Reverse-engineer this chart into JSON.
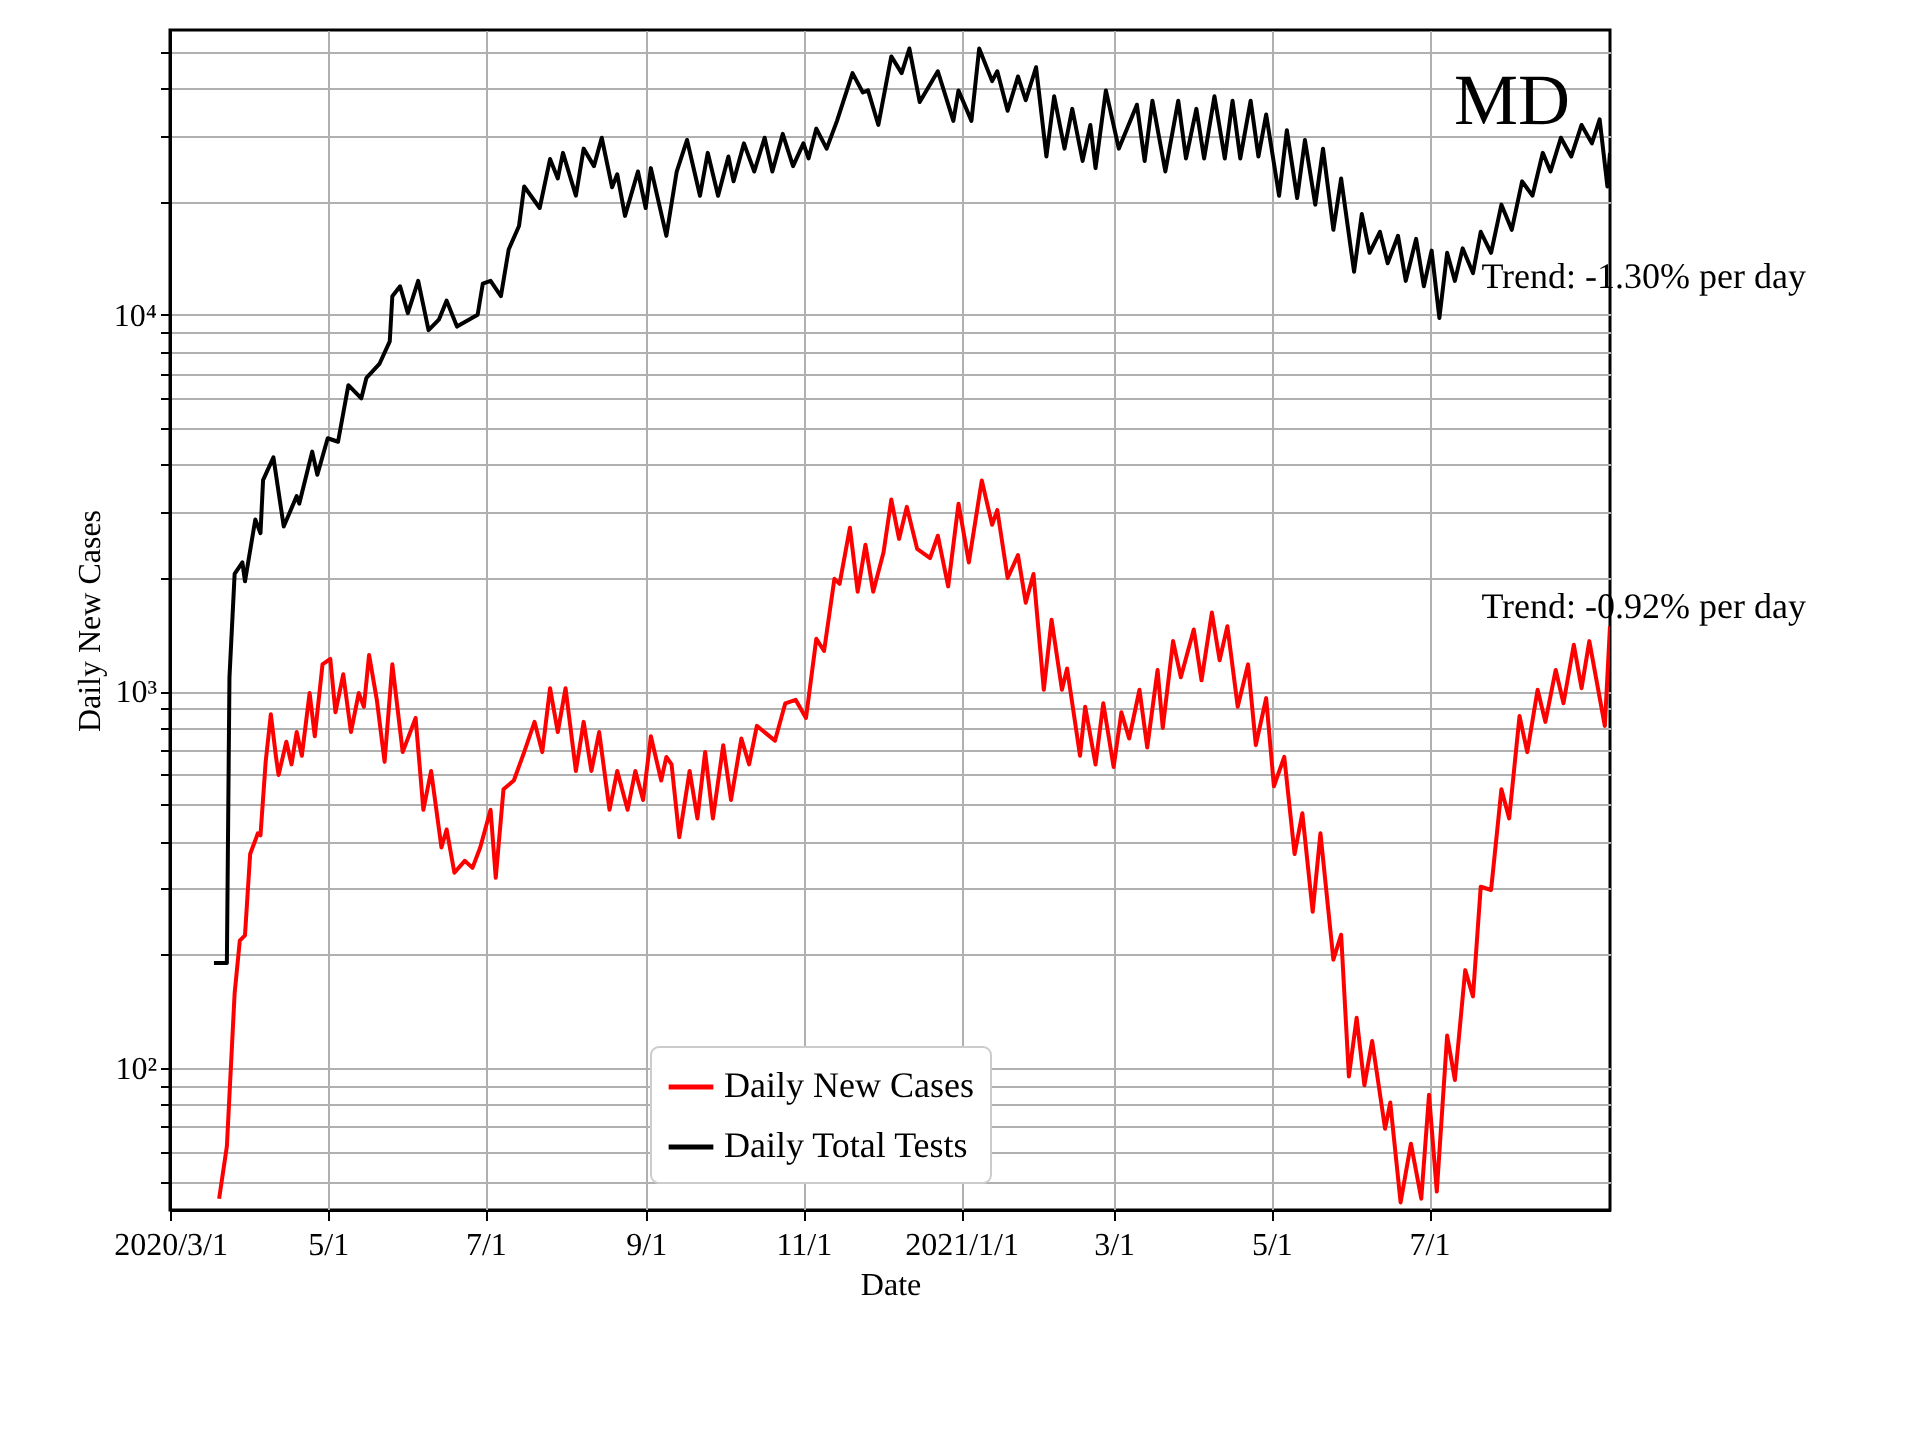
{
  "chart_data": {
    "type": "line",
    "xlabel": "Date",
    "ylabel": "Daily New Cases",
    "annotations": [
      "MD",
      "Trend: -1.30% per day",
      "Trend: -0.92% per day"
    ],
    "xlim": [
      "2020-03-01",
      "2021-09-09"
    ],
    "xticks": [
      {
        "value": "2020-03-01",
        "label": "2020/3/1"
      },
      {
        "value": "2020-05-01",
        "label": "5/1"
      },
      {
        "value": "2020-07-01",
        "label": "7/1"
      },
      {
        "value": "2020-09-01",
        "label": "9/1"
      },
      {
        "value": "2020-11-01",
        "label": "11/1"
      },
      {
        "value": "2021-01-01",
        "label": "2021/1/1"
      },
      {
        "value": "2021-03-01",
        "label": "3/1"
      },
      {
        "value": "2021-05-01",
        "label": "5/1"
      },
      {
        "value": "2021-07-01",
        "label": "7/1"
      }
    ],
    "ylim": [
      42,
      57000
    ],
    "yticks": [
      {
        "value": 50,
        "label": null
      },
      {
        "value": 60,
        "label": null
      },
      {
        "value": 70,
        "label": null
      },
      {
        "value": 80,
        "label": null
      },
      {
        "value": 90,
        "label": null
      },
      {
        "value": 100,
        "label": "10²"
      },
      {
        "value": 200,
        "label": null
      },
      {
        "value": 300,
        "label": null
      },
      {
        "value": 400,
        "label": null
      },
      {
        "value": 500,
        "label": null
      },
      {
        "value": 600,
        "label": null
      },
      {
        "value": 700,
        "label": null
      },
      {
        "value": 800,
        "label": null
      },
      {
        "value": 900,
        "label": null
      },
      {
        "value": 1000,
        "label": "10³"
      },
      {
        "value": 2000,
        "label": null
      },
      {
        "value": 3000,
        "label": null
      },
      {
        "value": 4000,
        "label": null
      },
      {
        "value": 5000,
        "label": null
      },
      {
        "value": 6000,
        "label": null
      },
      {
        "value": 7000,
        "label": null
      },
      {
        "value": 8000,
        "label": null
      },
      {
        "value": 9000,
        "label": null
      },
      {
        "value": 10000,
        "label": "10⁴"
      },
      {
        "value": 20000,
        "label": null
      },
      {
        "value": 30000,
        "label": null
      },
      {
        "value": 40000,
        "label": null
      },
      {
        "value": 50000,
        "label": null
      }
    ],
    "log": true,
    "grid": true,
    "legend": "bottom",
    "marker": "none",
    "line_style": "solid",
    "series": [
      {
        "name": "Daily New Cases",
        "color": "#ff0000",
        "x": [
          "2020-03-20",
          "2020-03-23",
          "2020-03-26",
          "2020-03-28",
          "2020-03-30",
          "2020-04-01",
          "2020-04-04",
          "2020-04-05",
          "2020-04-07",
          "2020-04-09",
          "2020-04-11",
          "2020-04-12",
          "2020-04-15",
          "2020-04-17",
          "2020-04-19",
          "2020-04-21",
          "2020-04-24",
          "2020-04-26",
          "2020-04-29",
          "2020-05-02",
          "2020-05-04",
          "2020-05-07",
          "2020-05-10",
          "2020-05-13",
          "2020-05-15",
          "2020-05-17",
          "2020-05-20",
          "2020-05-23",
          "2020-05-26",
          "2020-05-30",
          "2020-06-04",
          "2020-06-07",
          "2020-06-10",
          "2020-06-14",
          "2020-06-16",
          "2020-06-19",
          "2020-06-23",
          "2020-06-26",
          "2020-06-29",
          "2020-07-03",
          "2020-07-05",
          "2020-07-08",
          "2020-07-12",
          "2020-07-16",
          "2020-07-20",
          "2020-07-23",
          "2020-07-26",
          "2020-07-29",
          "2020-08-01",
          "2020-08-05",
          "2020-08-08",
          "2020-08-11",
          "2020-08-14",
          "2020-08-18",
          "2020-08-21",
          "2020-08-25",
          "2020-08-28",
          "2020-08-31",
          "2020-09-03",
          "2020-09-07",
          "2020-09-09",
          "2020-09-11",
          "2020-09-14",
          "2020-09-18",
          "2020-09-21",
          "2020-09-24",
          "2020-09-27",
          "2020-10-01",
          "2020-10-04",
          "2020-10-08",
          "2020-10-11",
          "2020-10-14",
          "2020-10-21",
          "2020-10-25",
          "2020-10-29",
          "2020-11-02",
          "2020-11-06",
          "2020-11-09",
          "2020-11-13",
          "2020-11-15",
          "2020-11-19",
          "2020-11-22",
          "2020-11-25",
          "2020-11-28",
          "2020-12-02",
          "2020-12-05",
          "2020-12-08",
          "2020-12-11",
          "2020-12-15",
          "2020-12-20",
          "2020-12-23",
          "2020-12-27",
          "2020-12-31",
          "2021-01-04",
          "2021-01-09",
          "2021-01-13",
          "2021-01-15",
          "2021-01-19",
          "2021-01-23",
          "2021-01-26",
          "2021-01-29",
          "2021-02-02",
          "2021-02-05",
          "2021-02-09",
          "2021-02-11",
          "2021-02-16",
          "2021-02-18",
          "2021-02-22",
          "2021-02-25",
          "2021-03-01",
          "2021-03-04",
          "2021-03-07",
          "2021-03-11",
          "2021-03-14",
          "2021-03-18",
          "2021-03-20",
          "2021-03-24",
          "2021-03-27",
          "2021-04-01",
          "2021-04-04",
          "2021-04-08",
          "2021-04-11",
          "2021-04-14",
          "2021-04-18",
          "2021-04-22",
          "2021-04-25",
          "2021-04-29",
          "2021-05-02",
          "2021-05-06",
          "2021-05-10",
          "2021-05-13",
          "2021-05-17",
          "2021-05-20",
          "2021-05-25",
          "2021-05-28",
          "2021-05-31",
          "2021-06-03",
          "2021-06-06",
          "2021-06-09",
          "2021-06-14",
          "2021-06-16",
          "2021-06-20",
          "2021-06-24",
          "2021-06-28",
          "2021-07-01",
          "2021-07-04",
          "2021-07-08",
          "2021-07-11",
          "2021-07-15",
          "2021-07-18",
          "2021-07-21",
          "2021-07-25",
          "2021-07-29",
          "2021-08-01",
          "2021-08-05",
          "2021-08-08",
          "2021-08-12",
          "2021-08-15",
          "2021-08-19",
          "2021-08-22",
          "2021-08-26",
          "2021-08-29",
          "2021-09-01",
          "2021-09-07",
          "2021-09-09"
        ],
        "values": [
          45,
          62,
          158,
          218,
          225,
          370,
          420,
          415,
          650,
          870,
          670,
          600,
          735,
          640,
          780,
          675,
          990,
          760,
          1180,
          1220,
          880,
          1110,
          780,
          990,
          910,
          1250,
          950,
          650,
          1180,
          690,
          850,
          485,
          615,
          385,
          430,
          330,
          355,
          340,
          385,
          485,
          320,
          550,
          580,
          690,
          830,
          690,
          1020,
          780,
          1020,
          615,
          830,
          615,
          780,
          485,
          615,
          485,
          615,
          515,
          760,
          580,
          670,
          640,
          410,
          615,
          460,
          690,
          460,
          720,
          515,
          750,
          640,
          810,
          740,
          930,
          950,
          850,
          1380,
          1280,
          1990,
          1930,
          2720,
          1840,
          2450,
          1840,
          2340,
          3230,
          2540,
          3090,
          2390,
          2260,
          2590,
          1900,
          3150,
          2200,
          3630,
          2770,
          3030,
          2000,
          2300,
          1720,
          2050,
          1010,
          1550,
          1010,
          1150,
          675,
          910,
          640,
          930,
          630,
          880,
          750,
          1010,
          710,
          1140,
          800,
          1360,
          1090,
          1460,
          1070,
          1620,
          1210,
          1490,
          910,
          1180,
          720,
          960,
          560,
          670,
          370,
          475,
          260,
          420,
          194,
          226,
          95,
          136,
          90,
          118,
          69,
          81,
          44,
          63,
          45,
          85,
          47,
          122,
          93,
          182,
          155,
          303,
          297,
          550,
          460,
          860,
          690,
          1010,
          830,
          1140,
          930,
          1330,
          1020,
          1360,
          810,
          1490
        ]
      },
      {
        "name": "Daily Total Tests",
        "color": "#000000",
        "x": [
          "2020-03-18",
          "2020-03-23",
          "2020-03-24",
          "2020-03-26",
          "2020-03-29",
          "2020-03-30",
          "2020-04-03",
          "2020-04-05",
          "2020-04-06",
          "2020-04-10",
          "2020-04-14",
          "2020-04-19",
          "2020-04-20",
          "2020-04-25",
          "2020-04-27",
          "2020-05-01",
          "2020-05-05",
          "2020-05-09",
          "2020-05-14",
          "2020-05-16",
          "2020-05-21",
          "2020-05-25",
          "2020-05-26",
          "2020-05-29",
          "2020-06-01",
          "2020-06-05",
          "2020-06-09",
          "2020-06-13",
          "2020-06-16",
          "2020-06-20",
          "2020-06-28",
          "2020-06-30",
          "2020-07-03",
          "2020-07-07",
          "2020-07-10",
          "2020-07-14",
          "2020-07-16",
          "2020-07-22",
          "2020-07-26",
          "2020-07-29",
          "2020-07-31",
          "2020-08-05",
          "2020-08-08",
          "2020-08-12",
          "2020-08-15",
          "2020-08-19",
          "2020-08-21",
          "2020-08-24",
          "2020-08-29",
          "2020-09-01",
          "2020-09-03",
          "2020-09-09",
          "2020-09-13",
          "2020-09-17",
          "2020-09-22",
          "2020-09-25",
          "2020-09-29",
          "2020-10-03",
          "2020-10-05",
          "2020-10-09",
          "2020-10-13",
          "2020-10-17",
          "2020-10-20",
          "2020-10-24",
          "2020-10-28",
          "2020-11-01",
          "2020-11-03",
          "2020-11-06",
          "2020-11-10",
          "2020-11-14",
          "2020-11-20",
          "2020-11-24",
          "2020-11-26",
          "2020-11-30",
          "2020-12-05",
          "2020-12-09",
          "2020-12-12",
          "2020-12-16",
          "2020-12-23",
          "2020-12-29",
          "2020-12-31",
          "2021-01-05",
          "2021-01-08",
          "2021-01-13",
          "2021-01-15",
          "2021-01-19",
          "2021-01-23",
          "2021-01-26",
          "2021-01-30",
          "2021-02-03",
          "2021-02-06",
          "2021-02-10",
          "2021-02-13",
          "2021-02-17",
          "2021-02-20",
          "2021-02-22",
          "2021-02-26",
          "2021-03-03",
          "2021-03-10",
          "2021-03-13",
          "2021-03-16",
          "2021-03-21",
          "2021-03-26",
          "2021-03-29",
          "2021-04-02",
          "2021-04-05",
          "2021-04-09",
          "2021-04-13",
          "2021-04-16",
          "2021-04-19",
          "2021-04-23",
          "2021-04-26",
          "2021-04-29",
          "2021-05-04",
          "2021-05-07",
          "2021-05-11",
          "2021-05-14",
          "2021-05-18",
          "2021-05-21",
          "2021-05-25",
          "2021-05-28",
          "2021-06-02",
          "2021-06-05",
          "2021-06-08",
          "2021-06-12",
          "2021-06-15",
          "2021-06-19",
          "2021-06-22",
          "2021-06-26",
          "2021-06-29",
          "2021-07-02",
          "2021-07-05",
          "2021-07-08",
          "2021-07-11",
          "2021-07-14",
          "2021-07-18",
          "2021-07-21",
          "2021-07-25",
          "2021-07-29",
          "2021-08-02",
          "2021-08-06",
          "2021-08-10",
          "2021-08-14",
          "2021-08-17",
          "2021-08-21",
          "2021-08-25",
          "2021-08-29",
          "2021-09-02",
          "2021-09-05",
          "2021-09-08",
          "2021-09-09"
        ],
        "values": [
          190,
          190,
          1090,
          2050,
          2200,
          1960,
          2860,
          2630,
          3640,
          4180,
          2740,
          3300,
          3150,
          4330,
          3760,
          4700,
          4600,
          6500,
          6000,
          6800,
          7400,
          8500,
          11200,
          11900,
          10100,
          12300,
          9100,
          9700,
          10900,
          9300,
          10000,
          12100,
          12300,
          11200,
          14900,
          17200,
          21900,
          19200,
          25900,
          23000,
          26900,
          20700,
          27600,
          24800,
          29500,
          21800,
          23600,
          18300,
          24000,
          19200,
          24500,
          16200,
          24000,
          29100,
          20700,
          26900,
          20700,
          26300,
          22600,
          28500,
          24000,
          29500,
          24000,
          30200,
          24800,
          28500,
          26000,
          31200,
          27600,
          32700,
          43800,
          38900,
          39400,
          31900,
          48500,
          43800,
          50900,
          36700,
          44300,
          32700,
          39400,
          32700,
          50900,
          41700,
          44300,
          34800,
          42900,
          37100,
          45400,
          26300,
          38000,
          27600,
          35200,
          25600,
          31900,
          24500,
          39400,
          27600,
          36100,
          25600,
          37000,
          24000,
          37000,
          26000,
          35200,
          26000,
          38000,
          26000,
          37000,
          26000,
          37000,
          26300,
          34000,
          20700,
          30900,
          20400,
          29100,
          19600,
          27600,
          16800,
          23000,
          13000,
          18500,
          14600,
          16600,
          13700,
          16200,
          12300,
          15900,
          11900,
          14800,
          9800,
          14600,
          12300,
          15000,
          12900,
          16600,
          14600,
          19600,
          16800,
          22600,
          20700,
          26900,
          24000,
          29500,
          26300,
          31900,
          28500,
          33000,
          21900,
          26900
        ]
      }
    ]
  }
}
